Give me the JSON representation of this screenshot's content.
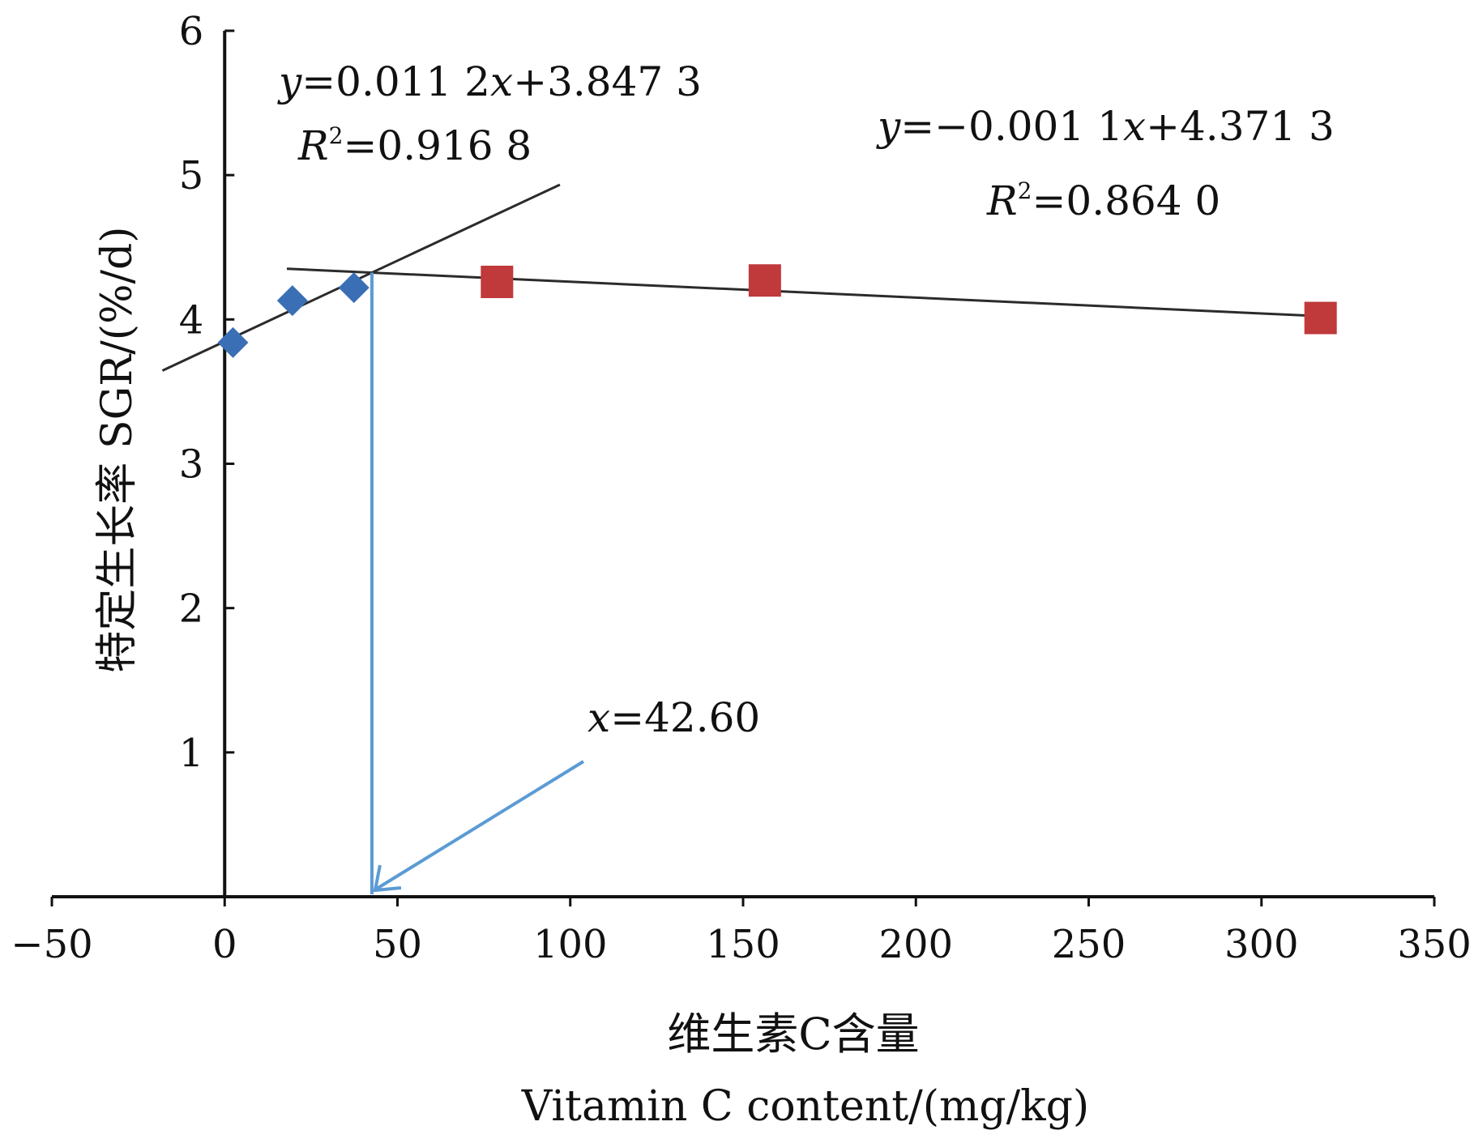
{
  "chart_data": {
    "type": "scatter",
    "xlabel_zh": "维生素C含量",
    "xlabel_en": "Vitamin C content/(mg/kg)",
    "ylabel": "特定生长率 SGR/(%/d)",
    "xlim": [
      -50,
      350
    ],
    "ylim": [
      0,
      6
    ],
    "x_ticks": [
      "−50",
      "0",
      "50",
      "100",
      "150",
      "200",
      "250",
      "300",
      "350"
    ],
    "y_ticks": [
      "1",
      "2",
      "3",
      "4",
      "5",
      "6"
    ],
    "grid": false,
    "series": [
      {
        "marker": "diamond",
        "color": "#3a6fb5",
        "points": [
          [
            2.4,
            3.84
          ],
          [
            19.6,
            4.13
          ],
          [
            37.4,
            4.22
          ]
        ]
      },
      {
        "marker": "square",
        "color": "#c0393b",
        "points": [
          [
            78.8,
            4.26
          ],
          [
            156.3,
            4.27
          ],
          [
            317.1,
            4.01
          ]
        ]
      }
    ],
    "fit_lines": [
      {
        "slope": 0.0112,
        "intercept": 3.8473,
        "x_range": [
          -18,
          97
        ],
        "color": "#2b2b2b"
      },
      {
        "slope": -0.0011,
        "intercept": 4.3713,
        "x_range": [
          18,
          317
        ],
        "color": "#2b2b2b"
      }
    ],
    "annotations": {
      "eq1": {
        "y": "y",
        "rest": "=0.011 2",
        "x": "x",
        "tail": "+3.847 3"
      },
      "r1": {
        "R": "R",
        "sup": "2",
        "value": "=0.916 8"
      },
      "eq2": {
        "y": "y",
        "rest": "=−0.001 1",
        "x": "x",
        "tail": "+4.371 3"
      },
      "r2": {
        "R": "R",
        "sup": "2",
        "value": "=0.864 0"
      },
      "breakpoint": {
        "x": "x",
        "value": "=42.60",
        "x_value": 42.6
      }
    },
    "arrow_color": "#5b9bd5"
  }
}
